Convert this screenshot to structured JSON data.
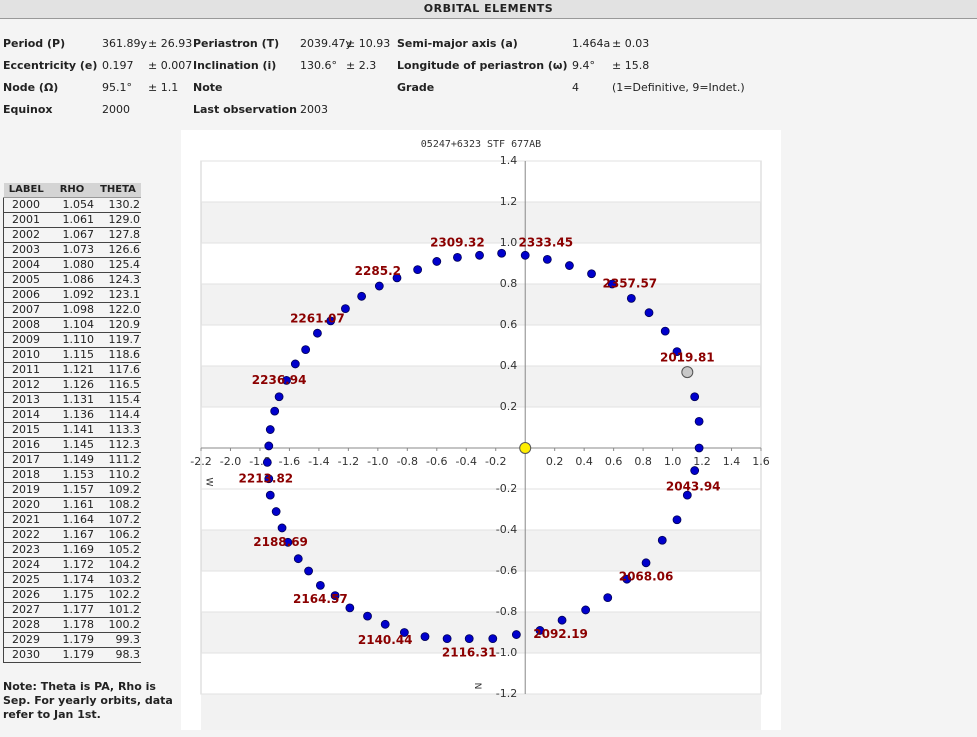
{
  "header": {
    "title": "ORBITAL ELEMENTS"
  },
  "elements": {
    "rows": [
      [
        {
          "label": "Period (P)",
          "value": "361.89y",
          "error": "± 26.93"
        },
        {
          "label": "Periastron (T)",
          "value": "2039.47y",
          "error": "± 10.93"
        },
        {
          "label": "Semi-major axis (a)",
          "value": "1.464a",
          "error": "± 0.03"
        }
      ],
      [
        {
          "label": "Eccentricity (e)",
          "value": "0.197",
          "error": "± 0.007"
        },
        {
          "label": "Inclination (i)",
          "value": "130.6°",
          "error": "± 2.3"
        },
        {
          "label": "Longitude of periastron (ω)",
          "value": "9.4°",
          "error": "± 15.8"
        }
      ],
      [
        {
          "label": "Node (Ω)",
          "value": "95.1°",
          "error": "± 1.1"
        },
        {
          "label": "Note"
        },
        {
          "label": "Grade",
          "value": "4",
          "note": "(1=Definitive, 9=Indet.)"
        }
      ],
      [
        {
          "label": "Equinox",
          "value": "2000"
        },
        {
          "label": "Last observation",
          "value": "2003"
        }
      ]
    ]
  },
  "table": {
    "header": [
      "LABEL",
      "RHO",
      "THETA"
    ],
    "rows": [
      [
        "2000",
        "1.054",
        "130.2"
      ],
      [
        "2001",
        "1.061",
        "129.0"
      ],
      [
        "2002",
        "1.067",
        "127.8"
      ],
      [
        "2003",
        "1.073",
        "126.6"
      ],
      [
        "2004",
        "1.080",
        "125.4"
      ],
      [
        "2005",
        "1.086",
        "124.3"
      ],
      [
        "2006",
        "1.092",
        "123.1"
      ],
      [
        "2007",
        "1.098",
        "122.0"
      ],
      [
        "2008",
        "1.104",
        "120.9"
      ],
      [
        "2009",
        "1.110",
        "119.7"
      ],
      [
        "2010",
        "1.115",
        "118.6"
      ],
      [
        "2011",
        "1.121",
        "117.6"
      ],
      [
        "2012",
        "1.126",
        "116.5"
      ],
      [
        "2013",
        "1.131",
        "115.4"
      ],
      [
        "2014",
        "1.136",
        "114.4"
      ],
      [
        "2015",
        "1.141",
        "113.3"
      ],
      [
        "2016",
        "1.145",
        "112.3"
      ],
      [
        "2017",
        "1.149",
        "111.2"
      ],
      [
        "2018",
        "1.153",
        "110.2"
      ],
      [
        "2019",
        "1.157",
        "109.2"
      ],
      [
        "2020",
        "1.161",
        "108.2"
      ],
      [
        "2021",
        "1.164",
        "107.2"
      ],
      [
        "2022",
        "1.167",
        "106.2"
      ],
      [
        "2023",
        "1.169",
        "105.2"
      ],
      [
        "2024",
        "1.172",
        "104.2"
      ],
      [
        "2025",
        "1.174",
        "103.2"
      ],
      [
        "2026",
        "1.175",
        "102.2"
      ],
      [
        "2027",
        "1.177",
        "101.2"
      ],
      [
        "2028",
        "1.178",
        "100.2"
      ],
      [
        "2029",
        "1.179",
        "99.3"
      ],
      [
        "2030",
        "1.179",
        "98.3"
      ]
    ]
  },
  "note": "Note: Theta is PA, Rho is Sep. For yearly orbits, data refer to Jan 1st.",
  "chart_data": {
    "type": "scatter",
    "title": "05247+6323 STF 677AB",
    "xlim": [
      -2.2,
      1.6
    ],
    "ylim": [
      -1.2,
      1.4
    ],
    "xticks": [
      -2.2,
      {
        "value": -2,
        "label": "-2.0"
      },
      -1.8,
      -1.6,
      -1.4,
      -1.2,
      {
        "value": -1,
        "label": "-1.0"
      },
      -0.8,
      -0.6,
      -0.4,
      -0.2,
      0.2,
      0.4,
      0.6,
      0.8,
      {
        "value": 1,
        "label": "1.0"
      },
      1.2,
      1.4,
      1.6
    ],
    "yticks": [
      1.4,
      1.2,
      {
        "value": 1,
        "label": "1.0"
      },
      0.8,
      0.6,
      0.4,
      0.2,
      -0.2,
      -0.4,
      -0.6,
      -0.8,
      {
        "value": -1,
        "label": "-1.0"
      },
      -1.2
    ],
    "grid": true,
    "axis_labels": {
      "west": "W",
      "north": "N"
    },
    "series": [
      {
        "color": "#0000cc",
        "x": [
          0.0,
          0.15,
          0.3,
          0.45,
          0.59,
          0.72,
          0.84,
          0.95,
          1.03,
          1.15,
          1.18,
          1.18,
          1.15,
          1.1,
          1.03,
          0.93,
          0.82,
          0.69,
          0.56,
          0.41,
          0.25,
          0.1,
          -0.06,
          -0.22,
          -0.38,
          -0.53,
          -0.68,
          -0.82,
          -0.95,
          -1.07,
          -1.19,
          -1.29,
          -1.39,
          -1.47,
          -1.54,
          -1.61,
          -1.65,
          -1.69,
          -1.73,
          -1.74,
          -1.75,
          -1.74,
          -1.73,
          -1.7,
          -1.67,
          -1.62,
          -1.56,
          -1.49,
          -1.41,
          -1.32,
          -1.22,
          -1.11,
          -0.99,
          -0.87,
          -0.73,
          -0.6,
          -0.46,
          -0.31,
          -0.16
        ],
        "values": [
          0.94,
          0.92,
          0.89,
          0.85,
          0.8,
          0.73,
          0.66,
          0.57,
          0.47,
          0.25,
          0.13,
          0.0,
          -0.11,
          -0.23,
          -0.35,
          -0.45,
          -0.56,
          -0.64,
          -0.73,
          -0.79,
          -0.84,
          -0.89,
          -0.91,
          -0.93,
          -0.93,
          -0.93,
          -0.92,
          -0.9,
          -0.86,
          -0.82,
          -0.78,
          -0.72,
          -0.67,
          -0.6,
          -0.54,
          -0.46,
          -0.39,
          -0.31,
          -0.23,
          -0.15,
          -0.07,
          0.01,
          0.09,
          0.18,
          0.25,
          0.33,
          0.41,
          0.48,
          0.56,
          0.62,
          0.68,
          0.74,
          0.79,
          0.83,
          0.87,
          0.91,
          0.93,
          0.94,
          0.95
        ]
      }
    ],
    "markers": [
      {
        "x": 0,
        "y": 0,
        "color": "#ffee00"
      },
      {
        "x": 1.1,
        "y": 0.37,
        "color": "#c8c8c8"
      }
    ],
    "annotations": [
      {
        "text": "2309.32",
        "x": -0.46,
        "y": 1.0
      },
      {
        "text": "2333.45",
        "x": 0.14,
        "y": 1.0
      },
      {
        "text": "2285.2",
        "x": -1.0,
        "y": 0.86
      },
      {
        "text": "2357.57",
        "x": 0.71,
        "y": 0.8
      },
      {
        "text": "2261.07",
        "x": -1.41,
        "y": 0.63
      },
      {
        "text": "2019.81",
        "x": 1.1,
        "y": 0.44
      },
      {
        "text": "2236.94",
        "x": -1.67,
        "y": 0.33
      },
      {
        "text": "2213.82",
        "x": -1.76,
        "y": -0.15
      },
      {
        "text": "2043.94",
        "x": 1.14,
        "y": -0.19
      },
      {
        "text": "2188.69",
        "x": -1.66,
        "y": -0.46
      },
      {
        "text": "2068.06",
        "x": 0.82,
        "y": -0.63
      },
      {
        "text": "2164.57",
        "x": -1.39,
        "y": -0.74
      },
      {
        "text": "2092.19",
        "x": 0.24,
        "y": -0.91
      },
      {
        "text": "2140.44",
        "x": -0.95,
        "y": -0.94
      },
      {
        "text": "2116.31",
        "x": -0.38,
        "y": -1.0
      }
    ]
  }
}
